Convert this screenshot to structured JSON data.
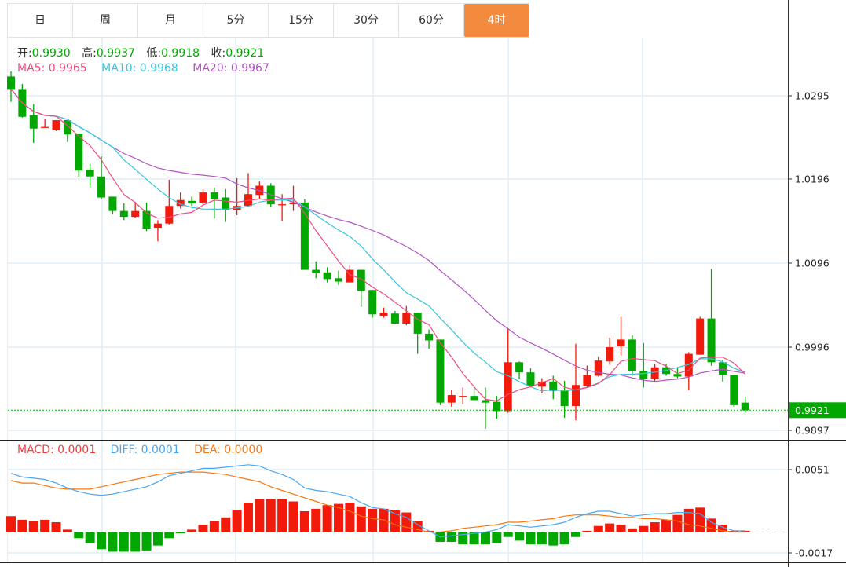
{
  "tabs": [
    {
      "label": "日",
      "active": false
    },
    {
      "label": "周",
      "active": false
    },
    {
      "label": "月",
      "active": false
    },
    {
      "label": "5分",
      "active": false
    },
    {
      "label": "15分",
      "active": false
    },
    {
      "label": "30分",
      "active": false
    },
    {
      "label": "60分",
      "active": false
    },
    {
      "label": "4时",
      "active": true
    }
  ],
  "ohlc_legend": {
    "open_label": "开:",
    "open": "0.9930",
    "high_label": "高:",
    "high": "0.9937",
    "low_label": "低:",
    "low": "0.9918",
    "close_label": "收:",
    "close": "0.9921"
  },
  "ma_legend": {
    "ma5": "MA5: 0.9965",
    "ma10": "MA10: 0.9968",
    "ma20": "MA20: 0.9967"
  },
  "macd_legend": {
    "macd": "MACD: 0.0001",
    "diff": "DIFF: 0.0001",
    "dea": "DEA: 0.0000"
  },
  "colors": {
    "up": "#f21a0b",
    "down": "#00a800",
    "ma5": "#ee4d7c",
    "ma10": "#36c5de",
    "ma20": "#b352c6",
    "diff": "#4aa6f0",
    "dea": "#f9760d",
    "tab_active": "#f38b3f",
    "grid": "#e3eef7"
  },
  "chart_data": [
    {
      "type": "candlestick",
      "title": "4时",
      "y_ticks": [
        "1.0295",
        "1.0196",
        "1.0096",
        "0.9996",
        "0.9897"
      ],
      "ylim": [
        0.9897,
        1.0295
      ],
      "last_price": "0.9921",
      "ohlc": [
        [
          1.0318,
          1.0324,
          1.0288,
          1.0303
        ],
        [
          1.0303,
          1.0309,
          1.0269,
          1.027
        ],
        [
          1.0272,
          1.0285,
          1.0239,
          1.0256
        ],
        [
          1.0257,
          1.0267,
          1.0257,
          1.0258
        ],
        [
          1.0254,
          1.0266,
          1.0253,
          1.0266
        ],
        [
          1.0266,
          1.0266,
          1.024,
          1.0249
        ],
        [
          1.025,
          1.025,
          1.0199,
          1.0206
        ],
        [
          1.0207,
          1.0214,
          1.0186,
          1.0199
        ],
        [
          1.0199,
          1.0223,
          1.0172,
          1.0174
        ],
        [
          1.0175,
          1.0175,
          1.0154,
          1.0158
        ],
        [
          1.0158,
          1.0167,
          1.0147,
          1.0151
        ],
        [
          1.0151,
          1.0169,
          1.015,
          1.0158
        ],
        [
          1.0158,
          1.0168,
          1.0134,
          1.0137
        ],
        [
          1.0138,
          1.0147,
          1.0122,
          1.0143
        ],
        [
          1.0143,
          1.0195,
          1.0142,
          1.0164
        ],
        [
          1.0164,
          1.018,
          1.0161,
          1.0171
        ],
        [
          1.017,
          1.0175,
          1.0164,
          1.0167
        ],
        [
          1.0168,
          1.0184,
          1.0165,
          1.018
        ],
        [
          1.018,
          1.0186,
          1.0149,
          1.0172
        ],
        [
          1.0174,
          1.0184,
          1.0145,
          1.0159
        ],
        [
          1.0159,
          1.0197,
          1.0153,
          1.0164
        ],
        [
          1.0164,
          1.0203,
          1.0164,
          1.0178
        ],
        [
          1.0177,
          1.0193,
          1.0172,
          1.0188
        ],
        [
          1.0188,
          1.0191,
          1.0163,
          1.0166
        ],
        [
          1.0166,
          1.0178,
          1.0146,
          1.0166
        ],
        [
          1.0166,
          1.0188,
          1.0158,
          1.0168
        ],
        [
          1.0168,
          1.0172,
          1.0088,
          1.0088
        ],
        [
          1.0088,
          1.0098,
          1.0078,
          1.0084
        ],
        [
          1.0085,
          1.0091,
          1.0073,
          1.0077
        ],
        [
          1.0078,
          1.0087,
          1.007,
          1.0074
        ],
        [
          1.0073,
          1.0094,
          1.0073,
          1.0088
        ],
        [
          1.0088,
          1.0088,
          1.0044,
          1.0063
        ],
        [
          1.0064,
          1.0064,
          1.0031,
          1.0035
        ],
        [
          1.0033,
          1.0043,
          1.0031,
          1.0037
        ],
        [
          1.0036,
          1.0039,
          1.0024,
          1.0024
        ],
        [
          1.0024,
          1.0045,
          1.0022,
          1.0037
        ],
        [
          1.0037,
          1.0037,
          0.9988,
          1.0012
        ],
        [
          1.0012,
          1.0017,
          0.9994,
          1.0004
        ],
        [
          1.0005,
          1.0005,
          0.9927,
          0.993
        ],
        [
          0.993,
          0.9945,
          0.9925,
          0.9939
        ],
        [
          0.9938,
          0.9948,
          0.9928,
          0.9938
        ],
        [
          0.9938,
          0.9948,
          0.9933,
          0.9933
        ],
        [
          0.9933,
          0.9948,
          0.9899,
          0.993
        ],
        [
          0.9931,
          0.9938,
          0.9911,
          0.992
        ],
        [
          0.992,
          1.0018,
          0.9918,
          0.9978
        ],
        [
          0.9978,
          0.9979,
          0.9958,
          0.9966
        ],
        [
          0.9966,
          0.9971,
          0.9949,
          0.995
        ],
        [
          0.9949,
          0.9959,
          0.9941,
          0.9955
        ],
        [
          0.9955,
          0.9962,
          0.9934,
          0.9944
        ],
        [
          0.9945,
          0.9956,
          0.9912,
          0.9926
        ],
        [
          0.9926,
          1.0,
          0.9909,
          0.9951
        ],
        [
          0.995,
          0.9974,
          0.9948,
          0.9963
        ],
        [
          0.9962,
          0.9985,
          0.9961,
          0.998
        ],
        [
          0.9979,
          1.0007,
          0.9975,
          0.9996
        ],
        [
          0.9997,
          1.0032,
          0.9986,
          1.0005
        ],
        [
          1.0005,
          1.001,
          0.9962,
          0.9968
        ],
        [
          0.9968,
          1.0001,
          0.9948,
          0.9958
        ],
        [
          0.9958,
          0.9976,
          0.9954,
          0.9972
        ],
        [
          0.9972,
          0.9976,
          0.9962,
          0.9964
        ],
        [
          0.9964,
          0.9971,
          0.9959,
          0.9961
        ],
        [
          0.9961,
          0.999,
          0.9945,
          0.9988
        ],
        [
          0.9987,
          1.0032,
          0.9987,
          1.003
        ],
        [
          1.003,
          1.0089,
          0.9974,
          0.9978
        ],
        [
          0.9978,
          0.9981,
          0.9955,
          0.9963
        ],
        [
          0.9963,
          0.9963,
          0.9925,
          0.9927
        ],
        [
          0.993,
          0.9937,
          0.9918,
          0.9921
        ]
      ],
      "ma_periods": [
        5,
        10,
        20
      ]
    },
    {
      "type": "bar+line",
      "title": "MACD",
      "y_ticks": [
        "0.0051",
        "-0.0017"
      ],
      "ylim": [
        -0.0017,
        0.0051
      ],
      "macd": [
        0.0013,
        0.001,
        0.0009,
        0.001,
        0.0008,
        0.0002,
        -0.0005,
        -0.0009,
        -0.0014,
        -0.0016,
        -0.0016,
        -0.0016,
        -0.0015,
        -0.0011,
        -0.0005,
        -0.0001,
        0.0002,
        0.0006,
        0.0009,
        0.0012,
        0.0018,
        0.0024,
        0.0027,
        0.0027,
        0.0027,
        0.0025,
        0.0017,
        0.0019,
        0.0022,
        0.0023,
        0.0024,
        0.0021,
        0.0019,
        0.0019,
        0.0018,
        0.0016,
        0.0009,
        0.0001,
        -0.0008,
        -0.0008,
        -0.001,
        -0.001,
        -0.001,
        -0.0009,
        -0.0004,
        -0.0007,
        -0.001,
        -0.001,
        -0.0011,
        -0.001,
        -0.0004,
        0.0001,
        0.0005,
        0.0007,
        0.0006,
        0.0003,
        0.0005,
        0.0008,
        0.001,
        0.0014,
        0.0019,
        0.002,
        0.0011,
        0.0006,
        0.0001,
        0.0001
      ],
      "diff": [
        0.0048,
        0.0045,
        0.0044,
        0.0043,
        0.004,
        0.0036,
        0.0033,
        0.0031,
        0.003,
        0.0031,
        0.0033,
        0.0035,
        0.0037,
        0.0041,
        0.0046,
        0.0048,
        0.005,
        0.0052,
        0.0052,
        0.0053,
        0.0054,
        0.0055,
        0.0054,
        0.005,
        0.0047,
        0.0043,
        0.0036,
        0.0034,
        0.0033,
        0.0031,
        0.0029,
        0.0024,
        0.002,
        0.0019,
        0.0015,
        0.0012,
        0.0006,
        0.0001,
        -0.0004,
        -0.0003,
        -0.0002,
        -0.0001,
        0.0,
        0.0002,
        0.0006,
        0.0005,
        0.0004,
        0.0005,
        0.0006,
        0.0008,
        0.0012,
        0.0015,
        0.0017,
        0.0017,
        0.0015,
        0.0013,
        0.0014,
        0.0015,
        0.0015,
        0.0016,
        0.0016,
        0.0015,
        0.0008,
        0.0004,
        0.0001,
        0.0001
      ],
      "dea": [
        0.0042,
        0.004,
        0.004,
        0.0038,
        0.0036,
        0.0035,
        0.0035,
        0.0035,
        0.0037,
        0.0039,
        0.0041,
        0.0043,
        0.0045,
        0.0047,
        0.0048,
        0.0049,
        0.0049,
        0.0049,
        0.0048,
        0.0047,
        0.0045,
        0.0043,
        0.0041,
        0.0037,
        0.0034,
        0.0031,
        0.0028,
        0.0025,
        0.0022,
        0.002,
        0.0017,
        0.0013,
        0.0011,
        0.001,
        0.0006,
        0.0004,
        0.0002,
        0.0,
        0.0,
        0.0001,
        0.0003,
        0.0004,
        0.0005,
        0.0006,
        0.0008,
        0.0008,
        0.0009,
        0.001,
        0.0011,
        0.0013,
        0.0014,
        0.0014,
        0.0014,
        0.0013,
        0.0012,
        0.0012,
        0.0011,
        0.0011,
        0.001,
        0.0009,
        0.0006,
        0.0005,
        0.0003,
        0.0001,
        0.0,
        0.0
      ]
    }
  ]
}
